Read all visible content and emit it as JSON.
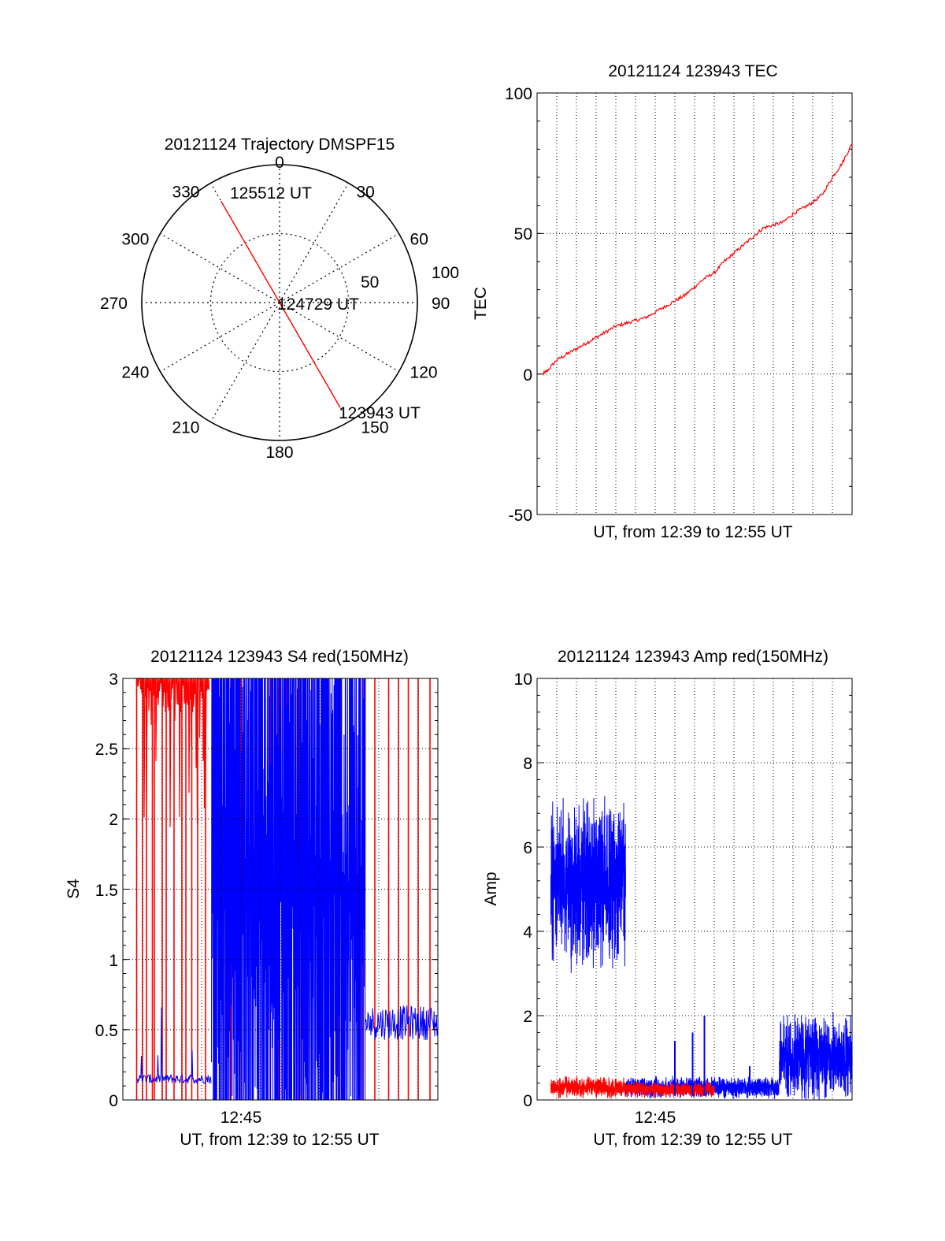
{
  "colors": {
    "red": "#ff0000",
    "blue": "#0000ff",
    "axis": "#000000",
    "grid": "#000000"
  },
  "chart_data": [
    {
      "id": "polar",
      "type": "polar",
      "title": "20121124 Trajectory DMSPF15",
      "angle_labels": [
        "0",
        "30",
        "60",
        "90",
        "120",
        "150",
        "180",
        "210",
        "240",
        "270",
        "300",
        "330"
      ],
      "radial_labels": [
        "50",
        "100"
      ],
      "rlim": [
        0,
        100
      ],
      "track": [
        {
          "az": 330,
          "r": 85,
          "label": "125512 UT"
        },
        {
          "az": 0,
          "r": 0,
          "label": "124729 UT"
        },
        {
          "az": 150,
          "r": 88,
          "label": "123943 UT"
        }
      ],
      "grid": true
    },
    {
      "id": "tec",
      "type": "line",
      "title": "20121124 123943 TEC",
      "xlabel": "UT, from 12:39 to 12:55 UT",
      "ylabel": "TEC",
      "ylim": [
        -50,
        100
      ],
      "yticks": [
        "100",
        "50",
        "0",
        "-50"
      ],
      "xlim_min": [
        0,
        16
      ],
      "series": [
        {
          "color": "red",
          "x": [
            0.3,
            0.5,
            1.0,
            1.5,
            2.0,
            2.5,
            3.0,
            3.5,
            4.0,
            4.5,
            5.0,
            5.5,
            6.0,
            6.5,
            7.0,
            7.5,
            8.0,
            8.5,
            9.0,
            9.5,
            10.0,
            10.5,
            11.0,
            11.5,
            12.0,
            12.5,
            13.0,
            13.5,
            14.0,
            14.5,
            15.0,
            15.5,
            16.0
          ],
          "y": [
            0,
            1,
            5,
            7,
            9,
            11,
            13,
            15,
            17,
            18,
            19,
            20,
            22,
            24,
            26,
            28,
            31,
            34,
            36,
            40,
            43,
            46,
            49,
            52,
            53,
            54,
            57,
            59,
            61,
            64,
            70,
            75,
            82
          ]
        }
      ],
      "grid": true
    },
    {
      "id": "s4",
      "type": "line",
      "title": "20121124 123943 S4 red(150MHz)",
      "xlabel": "UT, from 12:39 to 12:55 UT",
      "ylabel": "S4",
      "xtick_label": "12:45",
      "ylim": [
        0,
        3
      ],
      "yticks": [
        "3",
        "2.5",
        "2",
        "1.5",
        "1",
        "0.5",
        "0"
      ],
      "xlim_min": [
        0,
        16
      ],
      "series": [
        {
          "color": "blue",
          "name": "",
          "segments": [
            {
              "from": 0.7,
              "to": 4.5,
              "level": 0.15
            },
            {
              "from": 4.5,
              "to": 12.3,
              "level": "saturated"
            },
            {
              "from": 12.3,
              "to": 16.0,
              "level": 0.55
            }
          ]
        },
        {
          "color": "red",
          "name": "",
          "spikes": [
            0.7,
            1.0,
            1.2,
            1.5,
            1.6,
            2.0,
            2.2,
            2.6,
            3.0,
            3.2,
            3.5,
            3.8,
            4.2,
            5.5,
            6.0,
            7.5,
            7.9,
            8.3,
            9.0,
            9.6,
            10.3,
            11.0,
            12.2,
            12.8,
            13.5,
            14.0,
            14.5,
            15.0,
            15.6
          ]
        }
      ],
      "grid": true
    },
    {
      "id": "amp",
      "type": "line",
      "title": "20121124 123943 Amp red(150MHz)",
      "xlabel": "UT, from 12:39 to 12:55 UT",
      "ylabel": "Amp",
      "xtick_label": "12:45",
      "ylim": [
        0,
        10
      ],
      "yticks": [
        "10",
        "8",
        "6",
        "4",
        "2",
        "0"
      ],
      "xlim_min": [
        0,
        16
      ],
      "series": [
        {
          "color": "blue",
          "segments": [
            {
              "from": 0.7,
              "to": 4.5,
              "center": 5.1,
              "spread": 1.6
            },
            {
              "from": 4.5,
              "to": 12.3,
              "center": 0.3,
              "spread": 0.2
            },
            {
              "from": 12.3,
              "to": 16.0,
              "center": 1.0,
              "spread": 0.8
            }
          ]
        },
        {
          "color": "red",
          "segments": [
            {
              "from": 0.7,
              "to": 4.5,
              "center": 0.3,
              "spread": 0.2
            },
            {
              "from": 4.5,
              "to": 9.0,
              "center": 0.25,
              "spread": 0.15
            }
          ]
        }
      ],
      "grid": true
    }
  ]
}
